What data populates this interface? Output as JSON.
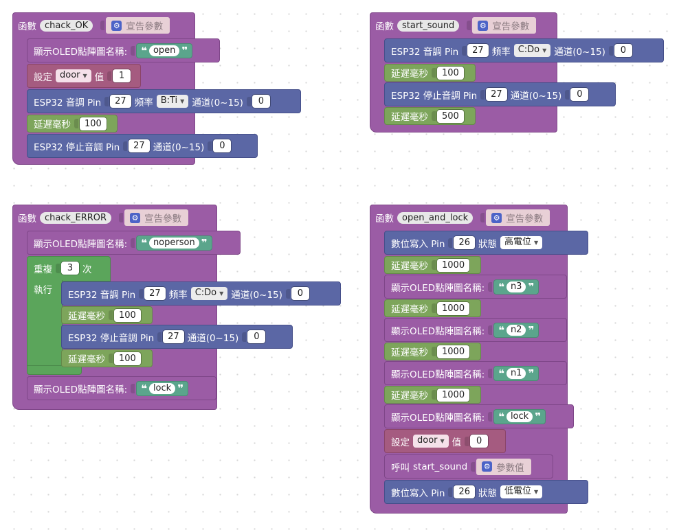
{
  "labels": {
    "function": "函數",
    "declare_params": "宣告參數",
    "oled_bitmap": "顯示OLED點陣圖名稱:",
    "set": "設定",
    "value": "值",
    "esp32_tone_pin": "ESP32 音調 Pin",
    "freq": "頻率",
    "channel": "通道(0~15)",
    "delay_ms": "延遲毫秒",
    "esp32_stop_tone_pin": "ESP32 停止音調 Pin",
    "repeat": "重複",
    "times": "次",
    "execute": "執行",
    "digital_write_pin": "數位寫入 Pin",
    "state": "狀態",
    "call": "呼叫",
    "param_value": "參數值",
    "quote_open": "❝",
    "quote_close": "❞",
    "gear": "⚙",
    "arrow": "▼"
  },
  "functions": {
    "chack_ok": {
      "name": "chack_OK",
      "oled": "open",
      "var": "door",
      "var_value": "1",
      "tone_pin": "27",
      "tone_freq": "B:Ti",
      "tone_channel": "0",
      "delay": "100",
      "stop_pin": "27",
      "stop_channel": "0"
    },
    "start_sound": {
      "name": "start_sound",
      "tone_pin": "27",
      "tone_freq": "C:Do",
      "tone_channel": "0",
      "delay1": "100",
      "stop_pin": "27",
      "stop_channel": "0",
      "delay2": "500"
    },
    "chack_error": {
      "name": "chack_ERROR",
      "oled1": "noperson",
      "repeat_count": "3",
      "tone_pin": "27",
      "tone_freq": "C:Do",
      "tone_channel": "0",
      "delay1": "100",
      "stop_pin": "27",
      "stop_channel": "0",
      "delay2": "100",
      "oled2": "lock"
    },
    "open_and_lock": {
      "name": "open_and_lock",
      "pin1": "26",
      "state1": "高電位",
      "delay1": "1000",
      "oled1": "n3",
      "delay2": "1000",
      "oled2": "n2",
      "delay3": "1000",
      "oled3": "n1",
      "delay4": "1000",
      "oled4": "lock",
      "var": "door",
      "var_value": "0",
      "call_target": "start_sound",
      "pin2": "26",
      "state2": "低電位"
    }
  }
}
